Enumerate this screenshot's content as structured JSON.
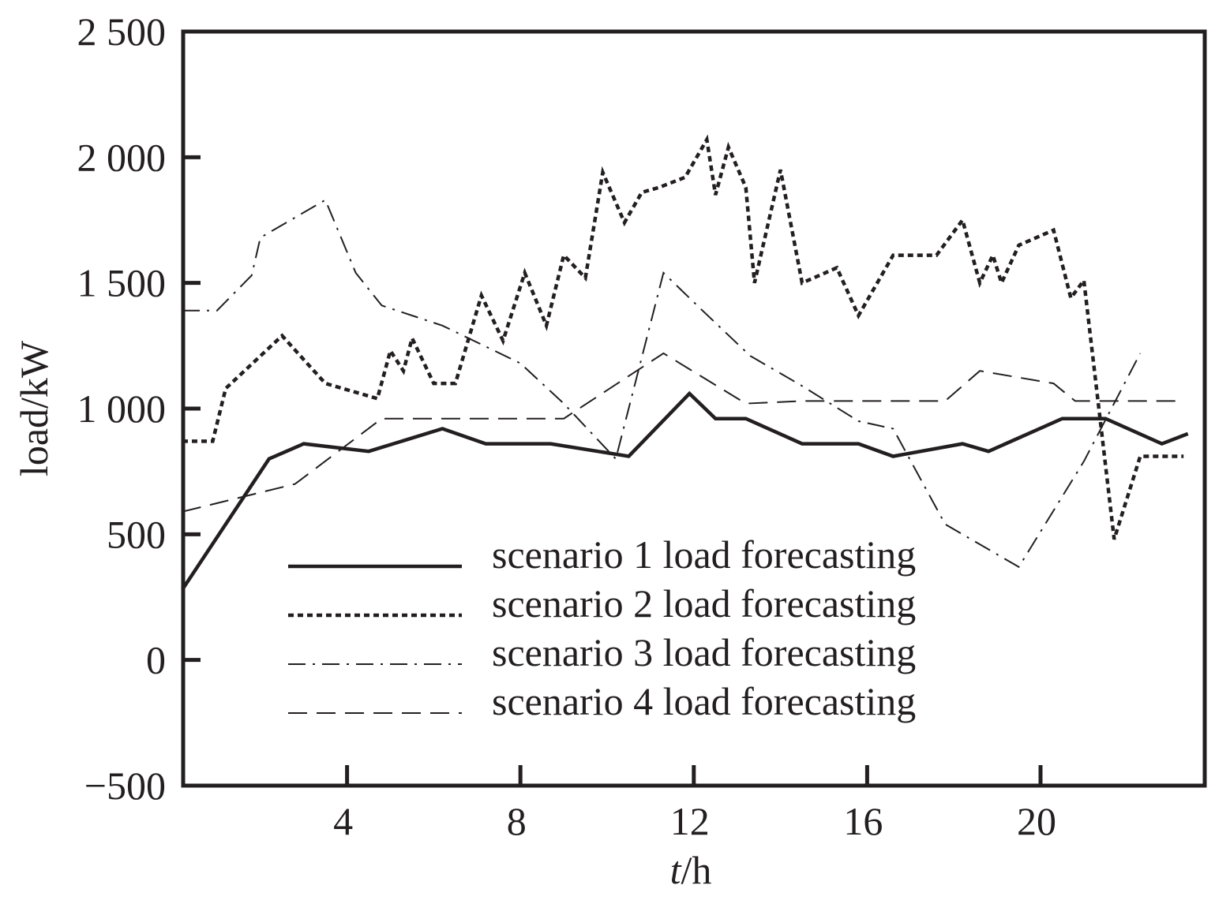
{
  "chart_data": {
    "type": "line",
    "xlabel_italic": "t",
    "xlabel_unit": "/h",
    "ylabel": "load/kW",
    "xlim": [
      0.2,
      23.4
    ],
    "ylim": [
      -500,
      2500
    ],
    "x_ticks": [
      4,
      8,
      12,
      16,
      20
    ],
    "y_ticks": [
      -500,
      0,
      500,
      1000,
      1500,
      2000,
      2500
    ],
    "y_tick_labels": [
      "−500",
      "0",
      "500",
      "1 000",
      "1 500",
      "2 000",
      "2 500"
    ],
    "grid": false,
    "legend_position": "bottom-center",
    "series": [
      {
        "name": "scenario 1 load forecasting",
        "style": "solid",
        "x": [
          0.2,
          2.2,
          3.0,
          4.5,
          6.2,
          7.2,
          8.0,
          8.7,
          10.5,
          11.9,
          12.5,
          13.2,
          14.5,
          15.8,
          16.6,
          18.2,
          18.8,
          20.5,
          21.5,
          22.8,
          23.4
        ],
        "y": [
          280,
          800,
          860,
          830,
          920,
          860,
          860,
          860,
          810,
          1060,
          960,
          960,
          860,
          860,
          810,
          860,
          830,
          960,
          960,
          860,
          900
        ]
      },
      {
        "name": "scenario 2 load forecasting",
        "style": "dotted",
        "x": [
          0.2,
          0.9,
          1.2,
          2.5,
          3.5,
          4.7,
          5.0,
          5.3,
          5.5,
          6.0,
          6.5,
          7.1,
          7.6,
          8.1,
          8.6,
          9.0,
          9.5,
          9.9,
          10.4,
          10.8,
          11.2,
          11.8,
          12.3,
          12.5,
          12.8,
          13.2,
          13.4,
          14.0,
          14.5,
          15.3,
          15.8,
          16.6,
          17.6,
          18.2,
          18.6,
          18.9,
          19.1,
          19.5,
          20.3,
          20.7,
          21.0,
          21.7,
          22.3,
          23.3
        ],
        "y": [
          870,
          870,
          1080,
          1290,
          1100,
          1040,
          1230,
          1150,
          1280,
          1100,
          1100,
          1450,
          1270,
          1540,
          1330,
          1610,
          1520,
          1940,
          1740,
          1860,
          1880,
          1920,
          2070,
          1850,
          2040,
          1880,
          1500,
          1950,
          1500,
          1560,
          1370,
          1610,
          1610,
          1750,
          1500,
          1610,
          1500,
          1650,
          1710,
          1440,
          1510,
          480,
          810,
          810
        ]
      },
      {
        "name": "scenario 3 load forecasting",
        "style": "dash-dot",
        "x": [
          0.2,
          1.0,
          1.8,
          2.0,
          3.5,
          4.2,
          4.8,
          6.2,
          8.0,
          9.0,
          9.6,
          10.2,
          11.3,
          12.2,
          13.3,
          14.5,
          15.8,
          16.6,
          17.8,
          19.5,
          21.0,
          22.3
        ],
        "y": [
          1390,
          1390,
          1530,
          1680,
          1830,
          1540,
          1410,
          1330,
          1180,
          1020,
          910,
          800,
          1540,
          1390,
          1210,
          1090,
          950,
          920,
          540,
          370,
          790,
          1220
        ]
      },
      {
        "name": "scenario 4 load forecasting",
        "style": "dashed",
        "x": [
          0.2,
          2.8,
          4.8,
          9.0,
          11.3,
          13.2,
          14.5,
          17.8,
          18.6,
          20.3,
          20.8,
          23.3
        ],
        "y": [
          590,
          700,
          960,
          960,
          1220,
          1020,
          1030,
          1030,
          1150,
          1100,
          1030,
          1030
        ]
      }
    ]
  }
}
